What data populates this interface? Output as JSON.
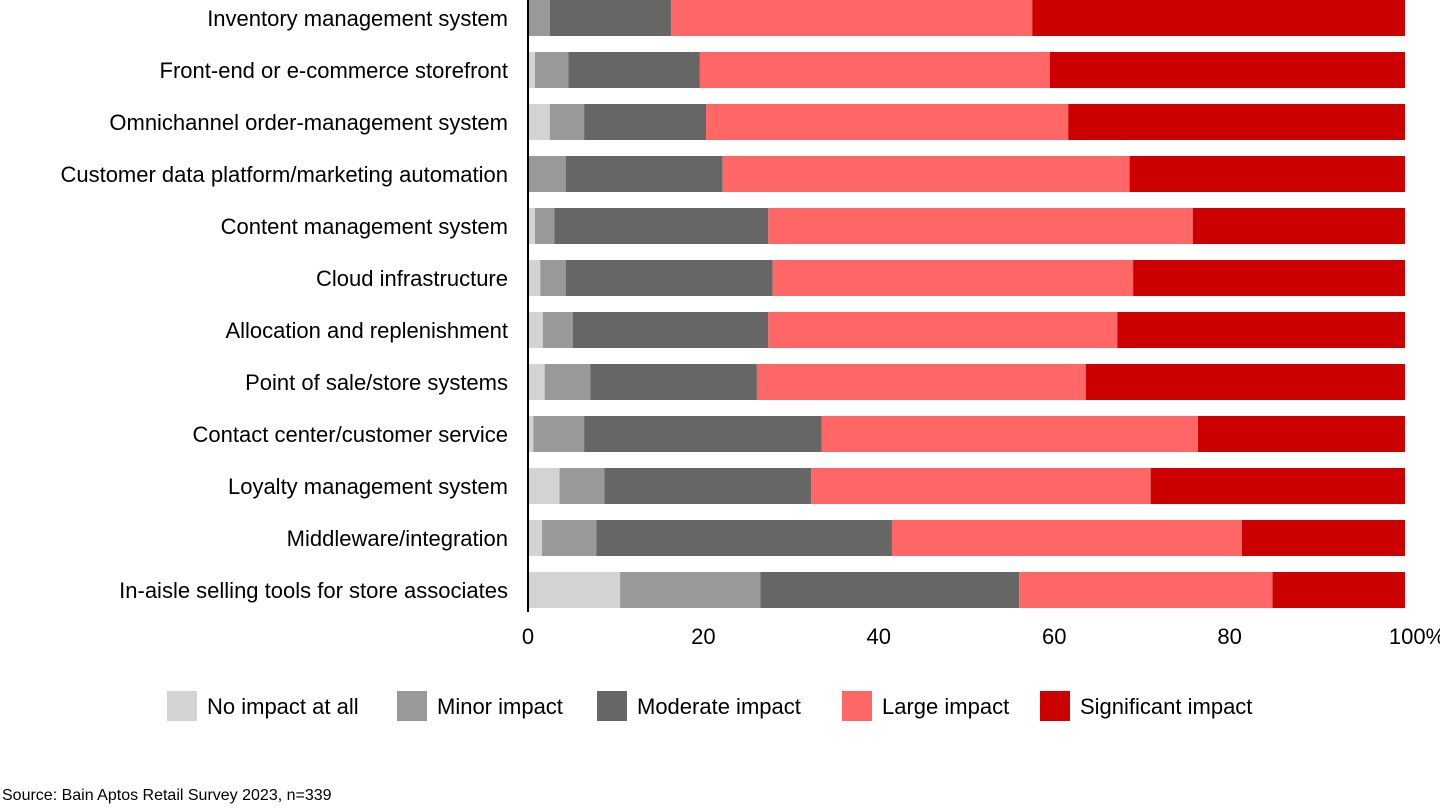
{
  "chart_data": {
    "type": "bar",
    "orientation": "horizontal",
    "stacked": true,
    "categories": [
      "Inventory management system",
      "Front-end or e-commerce storefront",
      "Omnichannel order-management system",
      "Customer data platform/marketing automation",
      "Content management system",
      "Cloud infrastructure",
      "Allocation and replenishment",
      "Point of sale/store systems",
      "Contact center/customer service",
      "Loyalty management system",
      "Middleware/integration",
      "In-aisle selling tools for store associates"
    ],
    "series": [
      {
        "name": "No impact at all",
        "color": "#d3d3d3",
        "values": [
          0,
          0.8,
          2.5,
          0,
          0.8,
          1.4,
          1.7,
          1.9,
          0.6,
          3.6,
          1.6,
          10.5
        ]
      },
      {
        "name": "Minor impact",
        "color": "#999999",
        "values": [
          2.5,
          3.8,
          3.9,
          4.3,
          2.2,
          2.9,
          3.4,
          5.2,
          5.8,
          5.1,
          6.2,
          16.0
        ]
      },
      {
        "name": "Moderate impact",
        "color": "#666666",
        "values": [
          13.8,
          15.0,
          13.9,
          17.9,
          24.4,
          23.6,
          22.3,
          19.0,
          27.1,
          23.6,
          33.7,
          29.5
        ]
      },
      {
        "name": "Large impact",
        "color": "#ff6666",
        "values": [
          41.2,
          39.9,
          41.3,
          46.4,
          48.4,
          41.1,
          39.8,
          37.5,
          42.9,
          38.7,
          39.9,
          28.9
        ]
      },
      {
        "name": "Significant impact",
        "color": "#cc0000",
        "values": [
          42.5,
          40.5,
          38.4,
          31.4,
          24.2,
          31.0,
          32.8,
          36.4,
          23.6,
          29.0,
          18.6,
          15.1
        ]
      }
    ],
    "xlim": [
      0,
      100
    ],
    "xticks": [
      "0",
      "20",
      "40",
      "60",
      "80",
      "100%"
    ],
    "grid": false,
    "legend": "bottom-center"
  },
  "source": "Source: Bain Aptos Retail Survey 2023, n=339"
}
